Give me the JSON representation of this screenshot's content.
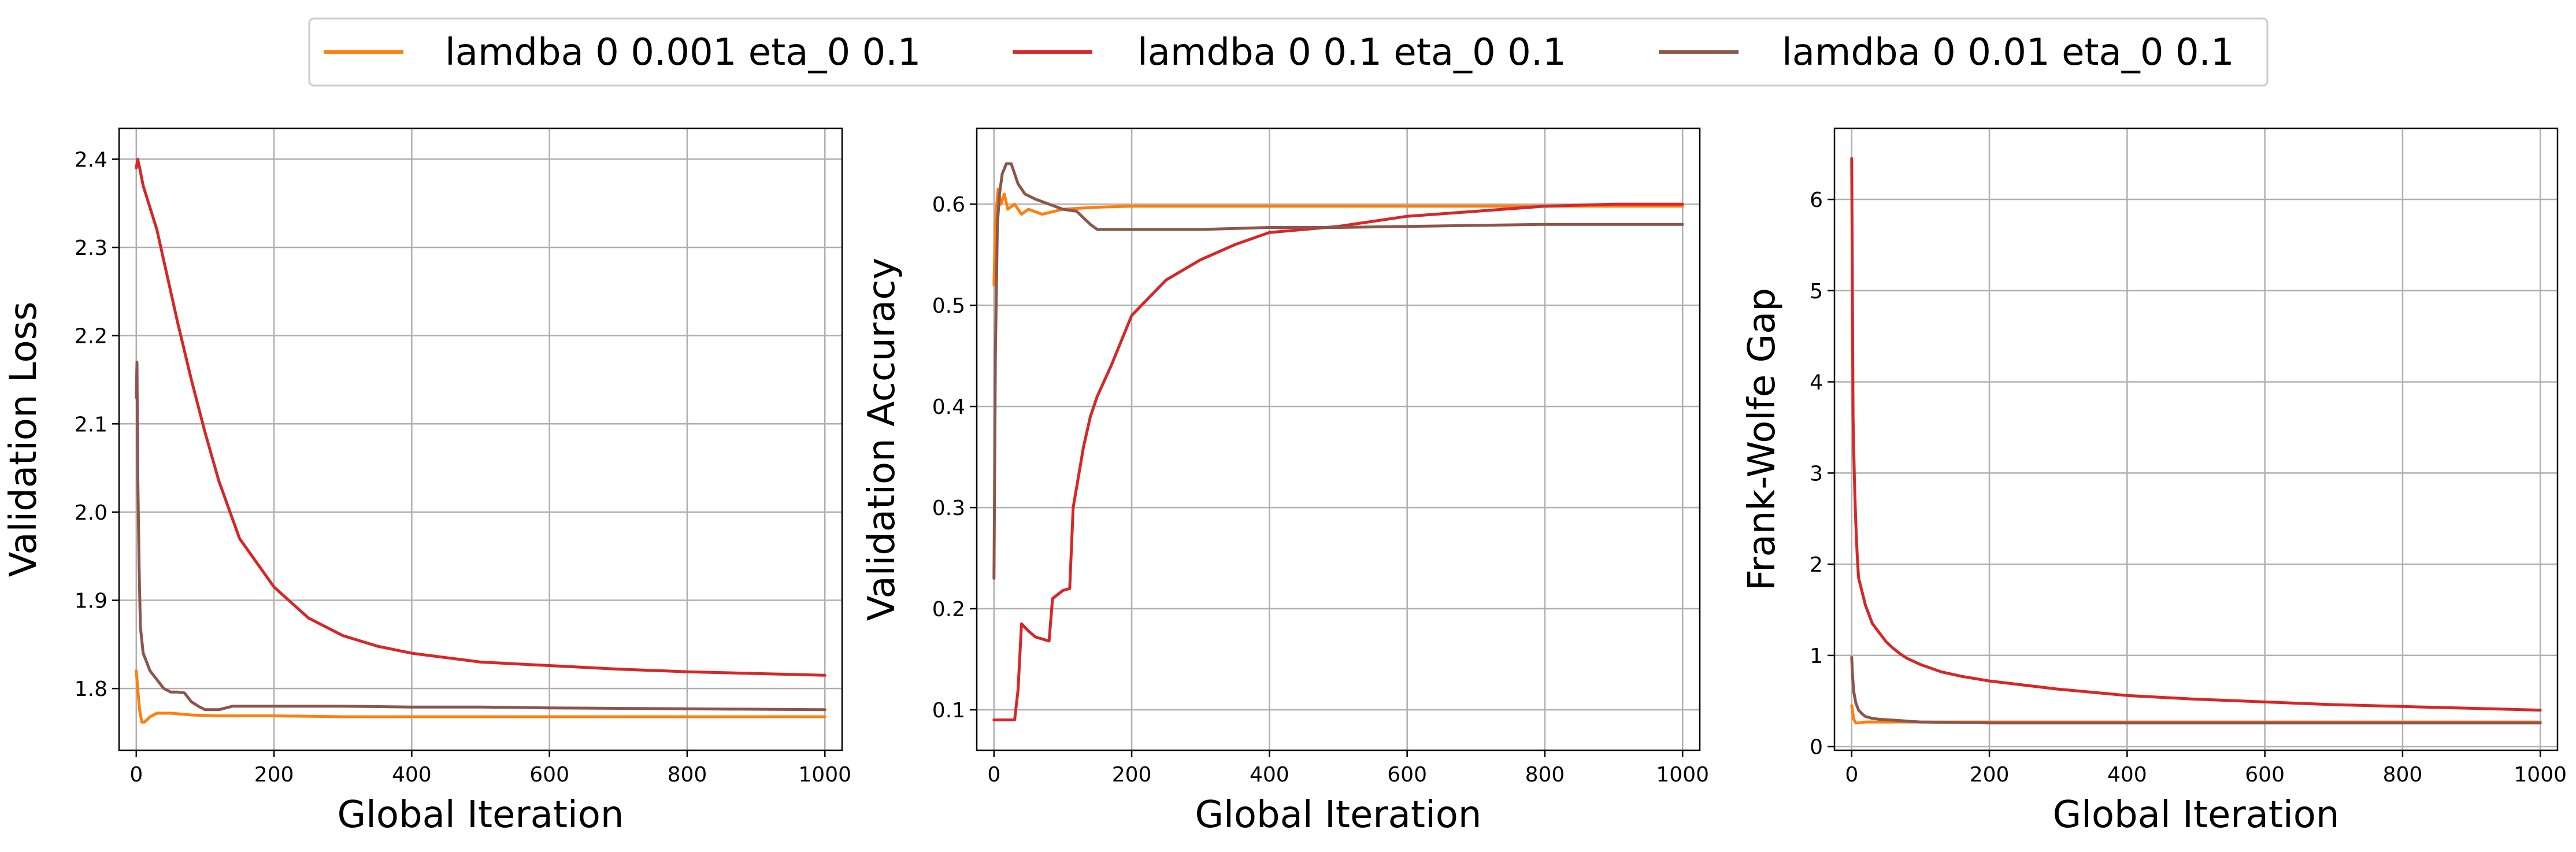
{
  "legend": {
    "entries": [
      {
        "label": "lamdba 0 0.001 eta_0 0.1",
        "color": "#ff7f0e"
      },
      {
        "label": "lamdba 0 0.1 eta_0 0.1",
        "color": "#d62728"
      },
      {
        "label": "lamdba 0 0.01 eta_0 0.1",
        "color": "#8c564b"
      }
    ],
    "placement": "top-center, above all subplots"
  },
  "chart_data": [
    {
      "type": "line",
      "title": "",
      "xlabel": "Global Iteration",
      "ylabel": "Validation Loss",
      "xlim": [
        -25,
        1025
      ],
      "ylim": [
        1.73,
        2.435
      ],
      "xticks": [
        0,
        200,
        400,
        600,
        800,
        1000
      ],
      "yticks": [
        1.8,
        1.9,
        2.0,
        2.1,
        2.2,
        2.3,
        2.4
      ],
      "ytick_decimals": 1,
      "grid": true,
      "series": [
        {
          "name": "lamdba 0 0.001 eta_0 0.1",
          "color": "#ff7f0e",
          "x": [
            0,
            2,
            5,
            8,
            12,
            20,
            30,
            50,
            80,
            120,
            200,
            300,
            500,
            800,
            1000
          ],
          "y": [
            1.82,
            1.8,
            1.775,
            1.762,
            1.762,
            1.768,
            1.772,
            1.772,
            1.77,
            1.769,
            1.769,
            1.768,
            1.768,
            1.768,
            1.768
          ]
        },
        {
          "name": "lamdba 0 0.1 eta_0 0.1",
          "color": "#d62728",
          "x": [
            0,
            2,
            5,
            10,
            20,
            30,
            40,
            60,
            80,
            100,
            120,
            150,
            200,
            250,
            300,
            350,
            400,
            500,
            600,
            700,
            800,
            900,
            1000
          ],
          "y": [
            2.39,
            2.4,
            2.39,
            2.37,
            2.345,
            2.32,
            2.285,
            2.215,
            2.15,
            2.09,
            2.035,
            1.97,
            1.915,
            1.88,
            1.86,
            1.848,
            1.84,
            1.83,
            1.826,
            1.822,
            1.819,
            1.817,
            1.815
          ]
        },
        {
          "name": "lamdba 0 0.01 eta_0 0.1",
          "color": "#8c564b",
          "x": [
            0,
            1,
            2,
            4,
            6,
            10,
            15,
            20,
            30,
            40,
            50,
            60,
            70,
            80,
            90,
            100,
            120,
            140,
            200,
            300,
            400,
            500,
            600,
            800,
            1000
          ],
          "y": [
            2.13,
            2.17,
            2.05,
            1.94,
            1.87,
            1.84,
            1.83,
            1.82,
            1.81,
            1.8,
            1.796,
            1.796,
            1.795,
            1.785,
            1.78,
            1.776,
            1.776,
            1.78,
            1.78,
            1.78,
            1.779,
            1.779,
            1.778,
            1.777,
            1.776
          ]
        }
      ]
    },
    {
      "type": "line",
      "title": "",
      "xlabel": "Global Iteration",
      "ylabel": "Validation Accuracy",
      "xlim": [
        -25,
        1025
      ],
      "ylim": [
        0.06,
        0.675
      ],
      "xticks": [
        0,
        200,
        400,
        600,
        800,
        1000
      ],
      "yticks": [
        0.1,
        0.2,
        0.3,
        0.4,
        0.5,
        0.6
      ],
      "ytick_decimals": 1,
      "grid": true,
      "series": [
        {
          "name": "lamdba 0 0.001 eta_0 0.1",
          "color": "#ff7f0e",
          "x": [
            0,
            2,
            4,
            6,
            10,
            15,
            20,
            30,
            40,
            50,
            70,
            100,
            150,
            200,
            400,
            600,
            800,
            1000
          ],
          "y": [
            0.52,
            0.58,
            0.6,
            0.615,
            0.6,
            0.61,
            0.595,
            0.6,
            0.59,
            0.595,
            0.59,
            0.595,
            0.597,
            0.598,
            0.598,
            0.598,
            0.598,
            0.598
          ]
        },
        {
          "name": "lamdba 0 0.1 eta_0 0.1",
          "color": "#d62728",
          "x": [
            0,
            20,
            30,
            35,
            40,
            50,
            60,
            80,
            85,
            100,
            110,
            115,
            120,
            130,
            140,
            150,
            170,
            200,
            250,
            300,
            350,
            400,
            500,
            600,
            700,
            800,
            900,
            1000
          ],
          "y": [
            0.09,
            0.09,
            0.09,
            0.12,
            0.185,
            0.178,
            0.172,
            0.168,
            0.21,
            0.218,
            0.22,
            0.3,
            0.32,
            0.36,
            0.39,
            0.41,
            0.44,
            0.49,
            0.525,
            0.545,
            0.56,
            0.572,
            0.578,
            0.588,
            0.593,
            0.598,
            0.6,
            0.6
          ]
        },
        {
          "name": "lamdba 0 0.01 eta_0 0.1",
          "color": "#8c564b",
          "x": [
            0,
            2,
            5,
            8,
            12,
            18,
            25,
            35,
            45,
            60,
            80,
            100,
            120,
            140,
            150,
            200,
            300,
            400,
            500,
            600,
            800,
            1000
          ],
          "y": [
            0.23,
            0.45,
            0.58,
            0.61,
            0.63,
            0.64,
            0.64,
            0.62,
            0.61,
            0.605,
            0.6,
            0.595,
            0.593,
            0.58,
            0.575,
            0.575,
            0.575,
            0.577,
            0.577,
            0.578,
            0.58,
            0.58
          ]
        }
      ]
    },
    {
      "type": "line",
      "title": "",
      "xlabel": "Global Iteration",
      "ylabel": "Frank-Wolfe Gap",
      "xlim": [
        -25,
        1025
      ],
      "ylim": [
        -0.04,
        6.78
      ],
      "xticks": [
        0,
        200,
        400,
        600,
        800,
        1000
      ],
      "yticks": [
        0,
        1,
        2,
        3,
        4,
        5,
        6
      ],
      "ytick_decimals": 0,
      "grid": true,
      "series": [
        {
          "name": "lamdba 0 0.001 eta_0 0.1",
          "color": "#ff7f0e",
          "x": [
            0,
            1,
            3,
            6,
            10,
            20,
            50,
            100,
            200,
            400,
            600,
            800,
            1000
          ],
          "y": [
            0.45,
            0.4,
            0.3,
            0.26,
            0.26,
            0.27,
            0.27,
            0.27,
            0.27,
            0.27,
            0.27,
            0.27,
            0.27
          ]
        },
        {
          "name": "lamdba 0 0.1 eta_0 0.1",
          "color": "#d62728",
          "x": [
            0,
            1,
            2,
            4,
            6,
            8,
            10,
            15,
            20,
            30,
            40,
            50,
            60,
            70,
            80,
            100,
            130,
            160,
            200,
            300,
            400,
            500,
            600,
            700,
            800,
            900,
            1000
          ],
          "y": [
            6.45,
            5.0,
            3.6,
            2.9,
            2.45,
            2.1,
            1.85,
            1.7,
            1.55,
            1.35,
            1.25,
            1.15,
            1.08,
            1.02,
            0.97,
            0.9,
            0.82,
            0.77,
            0.72,
            0.63,
            0.56,
            0.52,
            0.49,
            0.46,
            0.44,
            0.42,
            0.4
          ]
        },
        {
          "name": "lamdba 0 0.01 eta_0 0.1",
          "color": "#8c564b",
          "x": [
            0,
            1,
            3,
            6,
            10,
            15,
            20,
            30,
            40,
            60,
            80,
            100,
            200,
            400,
            600,
            800,
            1000
          ],
          "y": [
            0.98,
            0.8,
            0.6,
            0.48,
            0.4,
            0.36,
            0.33,
            0.31,
            0.3,
            0.29,
            0.28,
            0.27,
            0.26,
            0.26,
            0.26,
            0.26,
            0.26
          ]
        }
      ]
    }
  ]
}
